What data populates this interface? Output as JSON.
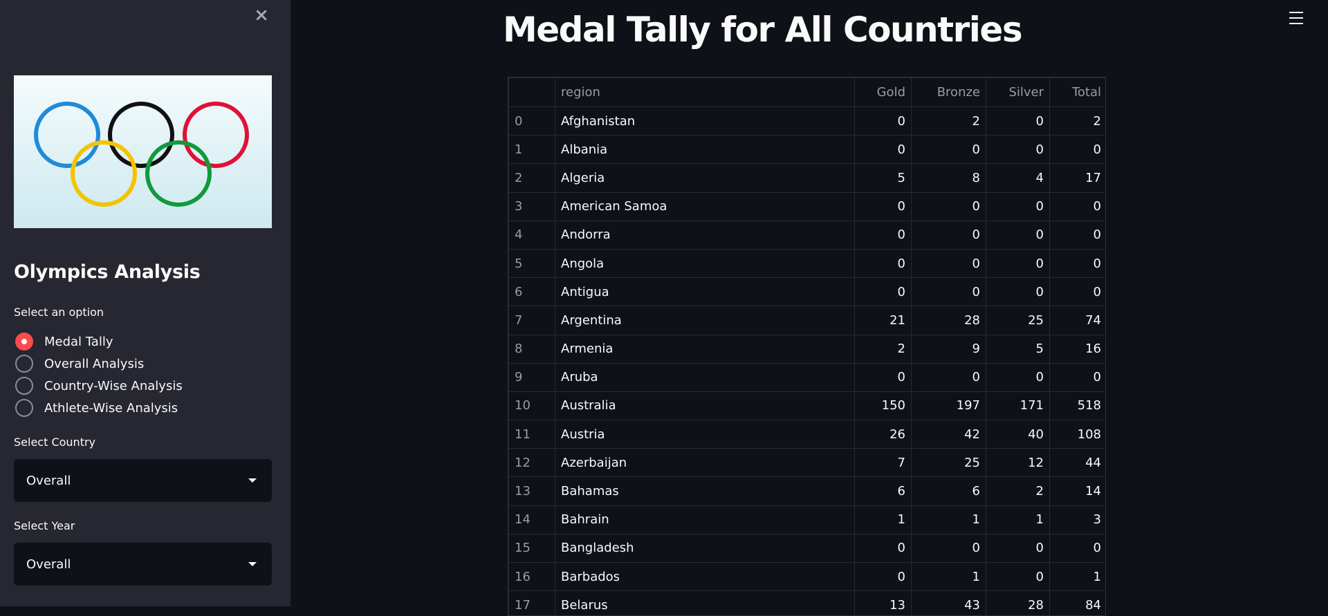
{
  "sidebar": {
    "close_label": "×",
    "title": "Olympics Analysis",
    "radio_label": "Select an option",
    "options": [
      "Medal Tally",
      "Overall Analysis",
      "Country-Wise Analysis",
      "Athlete-Wise Analysis"
    ],
    "selected_option": "Medal Tally",
    "country_label": "Select Country",
    "country_value": "Overall",
    "year_label": "Select Year",
    "year_value": "Overall",
    "logo_ring_colors": [
      "#1f8ad8",
      "#111111",
      "#df1236",
      "#f4c300",
      "#119a3c"
    ]
  },
  "main": {
    "title": "Medal Tally for All Countries",
    "menu_icon": "hamburger-menu-icon"
  },
  "table": {
    "columns": [
      "",
      "region",
      "Gold",
      "Bronze",
      "Silver",
      "Total"
    ],
    "rows": [
      [
        "0",
        "Afghanistan",
        "0",
        "2",
        "0",
        "2"
      ],
      [
        "1",
        "Albania",
        "0",
        "0",
        "0",
        "0"
      ],
      [
        "2",
        "Algeria",
        "5",
        "8",
        "4",
        "17"
      ],
      [
        "3",
        "American Samoa",
        "0",
        "0",
        "0",
        "0"
      ],
      [
        "4",
        "Andorra",
        "0",
        "0",
        "0",
        "0"
      ],
      [
        "5",
        "Angola",
        "0",
        "0",
        "0",
        "0"
      ],
      [
        "6",
        "Antigua",
        "0",
        "0",
        "0",
        "0"
      ],
      [
        "7",
        "Argentina",
        "21",
        "28",
        "25",
        "74"
      ],
      [
        "8",
        "Armenia",
        "2",
        "9",
        "5",
        "16"
      ],
      [
        "9",
        "Aruba",
        "0",
        "0",
        "0",
        "0"
      ],
      [
        "10",
        "Australia",
        "150",
        "197",
        "171",
        "518"
      ],
      [
        "11",
        "Austria",
        "26",
        "42",
        "40",
        "108"
      ],
      [
        "12",
        "Azerbaijan",
        "7",
        "25",
        "12",
        "44"
      ],
      [
        "13",
        "Bahamas",
        "6",
        "6",
        "2",
        "14"
      ],
      [
        "14",
        "Bahrain",
        "1",
        "1",
        "1",
        "3"
      ],
      [
        "15",
        "Bangladesh",
        "0",
        "0",
        "0",
        "0"
      ],
      [
        "16",
        "Barbados",
        "0",
        "1",
        "0",
        "1"
      ],
      [
        "17",
        "Belarus",
        "13",
        "43",
        "28",
        "84"
      ]
    ]
  },
  "colors": {
    "background": "#0e1117",
    "sidebar": "#262730",
    "accent": "#ff4b4b"
  }
}
